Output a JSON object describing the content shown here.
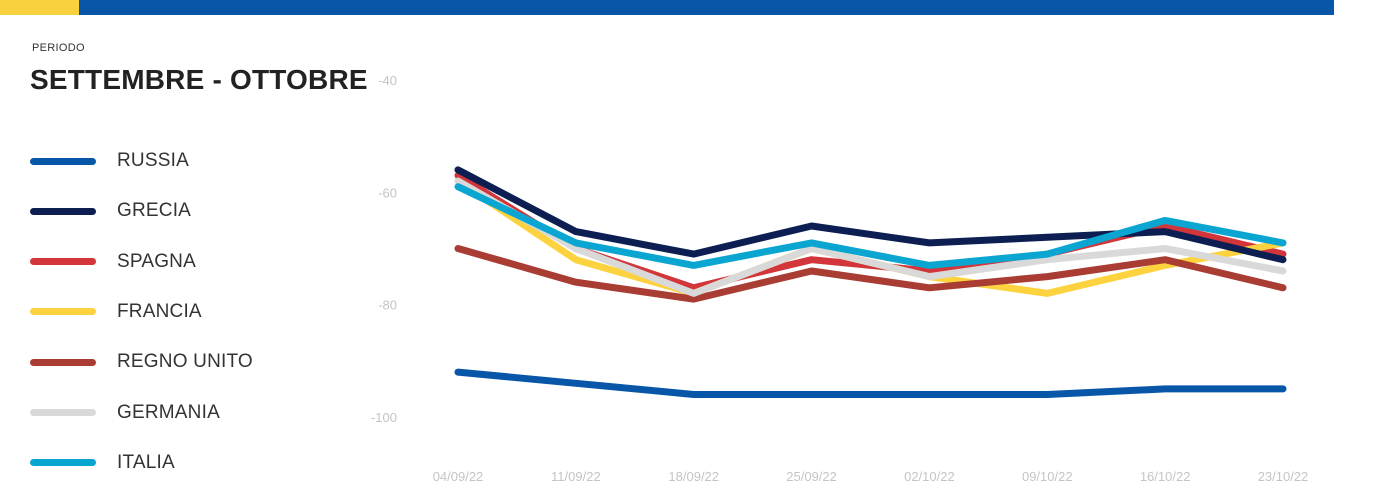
{
  "header": {
    "accent_color": "#f7d23e",
    "bar_color": "#0756a8"
  },
  "period": {
    "label": "PERIODO",
    "value": "SETTEMBRE - OTTOBRE"
  },
  "chart_data": {
    "type": "line",
    "title": "",
    "xlabel": "",
    "ylabel": "",
    "categories": [
      "04/09/22",
      "11/09/22",
      "18/09/22",
      "25/09/22",
      "02/10/22",
      "09/10/22",
      "16/10/22",
      "23/10/22"
    ],
    "yticks": [
      "-40",
      "-60",
      "-80",
      "-100"
    ],
    "ylim": [
      -100,
      -40
    ],
    "grid": false,
    "legend_position": "left",
    "series": [
      {
        "name": "RUSSIA",
        "color": "#0756a8",
        "values": [
          -92,
          -94,
          -96,
          -96,
          -96,
          -96,
          -95,
          -95
        ]
      },
      {
        "name": "GRECIA",
        "color": "#0d1f52",
        "values": [
          -56,
          -67,
          -71,
          -66,
          -69,
          -68,
          -67,
          -72
        ]
      },
      {
        "name": "SPAGNA",
        "color": "#d2353a",
        "values": [
          -57,
          -70,
          -77,
          -72,
          -74,
          -71,
          -66,
          -71
        ]
      },
      {
        "name": "FRANCIA",
        "color": "#fdd23f",
        "values": [
          -58,
          -72,
          -78,
          -70,
          -75,
          -78,
          -73,
          -69
        ]
      },
      {
        "name": "REGNO UNITO",
        "color": "#a93c33",
        "values": [
          -70,
          -76,
          -79,
          -74,
          -77,
          -75,
          -72,
          -77
        ]
      },
      {
        "name": "GERMANIA",
        "color": "#d9d9d9",
        "values": [
          -58,
          -70,
          -78,
          -70,
          -75,
          -72,
          -70,
          -74
        ]
      },
      {
        "name": "ITALIA",
        "color": "#0aa6d1",
        "values": [
          -59,
          -69,
          -73,
          -69,
          -73,
          -71,
          -65,
          -69
        ]
      }
    ]
  }
}
